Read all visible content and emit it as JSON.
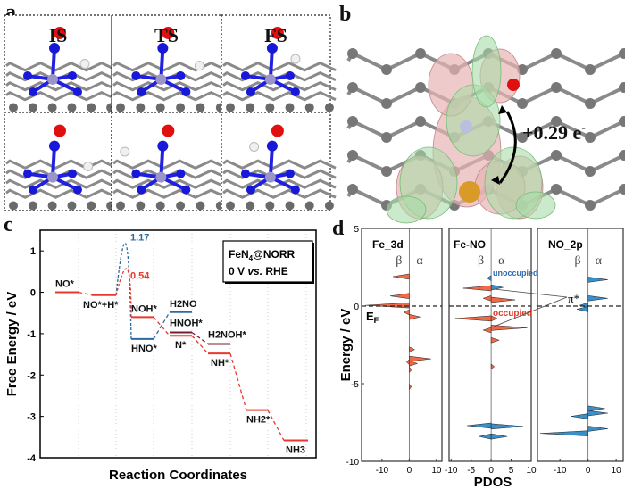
{
  "panel_labels": {
    "a": "a",
    "b": "b",
    "c": "c",
    "d": "d"
  },
  "panel_a": {
    "column_titles": [
      "IS",
      "TS",
      "FS"
    ]
  },
  "panel_b": {
    "charge_transfer_label": "+0.29 e",
    "charge_superscript": "-",
    "colors": {
      "depletion": "#e8b4b4",
      "accumulation": "#a8dca8",
      "fe": "#d99a28",
      "o": "#e01010",
      "n": "#b8c0e0",
      "c": "#7a7a7a"
    }
  },
  "chart_data": [
    {
      "type": "line",
      "title": "",
      "xlabel": "Reaction Coordinates",
      "ylabel": "Free Energy / eV",
      "ylim": [
        -4,
        1.5
      ],
      "yticks": [
        1,
        0,
        -1,
        -2,
        -3,
        -4
      ],
      "legend_box": [
        "FeN4@NORR",
        "0 V vs. RHE"
      ],
      "grid": "vertical dotted",
      "colors": {
        "red": "#e8392c",
        "blue": "#2e6a9e",
        "dark": "#7a1f2a"
      },
      "levels": [
        {
          "label": "NO*",
          "step": 0,
          "energy": 0.0,
          "color": "red"
        },
        {
          "label": "NO*+H*",
          "step": 1,
          "energy": -0.07,
          "color": "red"
        },
        {
          "label": "NOH*",
          "step": 2,
          "energy": -0.6,
          "color": "red"
        },
        {
          "label": "HNO*",
          "step": 2,
          "energy": -1.13,
          "color": "blue"
        },
        {
          "label": "H2NO",
          "step": 3,
          "energy": -0.48,
          "color": "blue"
        },
        {
          "label": "HNOH*",
          "step": 3,
          "energy": -0.97,
          "color": "dark"
        },
        {
          "label": "N*",
          "step": 3,
          "energy": -1.05,
          "color": "red"
        },
        {
          "label": "H2NOH*",
          "step": 4,
          "energy": -1.25,
          "color": "dark"
        },
        {
          "label": "NH*",
          "step": 4,
          "energy": -1.48,
          "color": "red"
        },
        {
          "label": "NH2*",
          "step": 5,
          "energy": -2.85,
          "color": "red"
        },
        {
          "label": "NH3",
          "step": 6,
          "energy": -3.58,
          "color": "red"
        }
      ],
      "barriers": [
        {
          "label": "1.17",
          "value": 1.17,
          "color": "blue",
          "to": "HNO*"
        },
        {
          "label": "0.54",
          "value": 0.54,
          "color": "red",
          "to": "NOH*"
        }
      ]
    },
    {
      "type": "area",
      "xlabel": "PDOS",
      "ylabel": "Energy / eV",
      "ylim": [
        -10,
        5
      ],
      "yticks": [
        5,
        0,
        -5,
        -10
      ],
      "fermi_label": "E",
      "fermi_sub": "F",
      "spin_labels": [
        "β",
        "α"
      ],
      "annotations": {
        "unoccupied": "unoccupied",
        "occupied": "occupied",
        "pi_star": "π*"
      },
      "colors": {
        "red": "#f06a48",
        "blue": "#3a8fc8"
      },
      "panels": [
        {
          "title": "Fe_3d",
          "xlim": [
            -17.5,
            12
          ],
          "xticks": [
            -10,
            0,
            10
          ],
          "peaks": [
            [
              1.9,
              -6,
              "red"
            ],
            [
              0.65,
              -7,
              "red"
            ],
            [
              0.05,
              -16,
              "red"
            ],
            [
              -0.4,
              -2,
              "red"
            ],
            [
              -0.7,
              4,
              "red"
            ],
            [
              -2.8,
              2,
              "red"
            ],
            [
              -3.4,
              8,
              "red"
            ],
            [
              -3.7,
              3,
              "red"
            ],
            [
              -3.6,
              -1,
              "red"
            ],
            [
              -4.1,
              1,
              "red"
            ],
            [
              -5.2,
              0.8,
              "red"
            ]
          ]
        },
        {
          "title": "Fe-NO",
          "xlim": [
            -10.5,
            10
          ],
          "xticks": [
            -10,
            -5,
            0,
            5,
            10
          ],
          "peaks": [
            [
              1.8,
              -1,
              "blue"
            ],
            [
              1.2,
              3,
              "blue"
            ],
            [
              1.15,
              -7,
              "red"
            ],
            [
              0.5,
              -2,
              "red"
            ],
            [
              0.4,
              6,
              "red"
            ],
            [
              -0.8,
              -9,
              "red"
            ],
            [
              -0.8,
              1.5,
              "red"
            ],
            [
              -1.4,
              9,
              "red"
            ],
            [
              -1.55,
              -2,
              "red"
            ],
            [
              -2.2,
              2,
              "red"
            ],
            [
              -3.9,
              0.8,
              "red"
            ],
            [
              -7.7,
              -6,
              "blue"
            ],
            [
              -7.75,
              8,
              "blue"
            ],
            [
              -8.4,
              -3,
              "blue"
            ],
            [
              -8.4,
              4,
              "blue"
            ]
          ]
        },
        {
          "title": "NO_2p",
          "xlim": [
            -18,
            12.5
          ],
          "xticks": [
            -10,
            0,
            10
          ],
          "peaks": [
            [
              1.7,
              7,
              "blue"
            ],
            [
              0.5,
              7,
              "blue"
            ],
            [
              0.05,
              -3,
              "blue"
            ],
            [
              -0.2,
              -4,
              "blue"
            ],
            [
              -6.6,
              6,
              "blue"
            ],
            [
              -6.9,
              7,
              "blue"
            ],
            [
              -7.1,
              -6,
              "blue"
            ],
            [
              -7.9,
              7,
              "blue"
            ],
            [
              -8.2,
              -17,
              "blue"
            ]
          ]
        }
      ]
    }
  ]
}
